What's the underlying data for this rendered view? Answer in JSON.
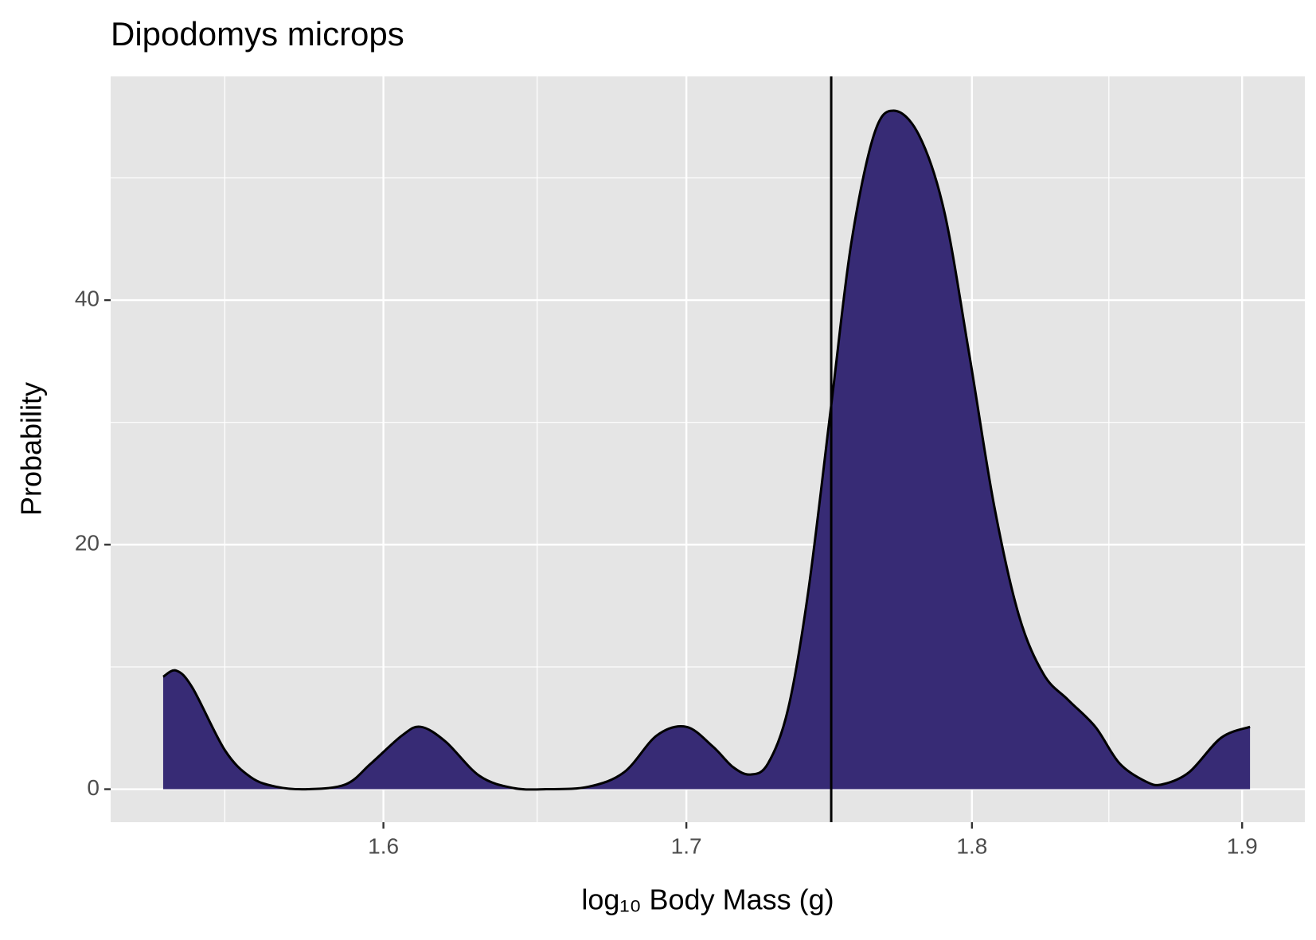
{
  "chart_data": {
    "type": "area",
    "title": "Dipodomys microps",
    "x_label": "log₁₀ Body Mass (g)",
    "y_label": "Probability",
    "x": [
      1.531,
      1.535,
      1.54,
      1.55,
      1.558,
      1.566,
      1.576,
      1.588,
      1.596,
      1.606,
      1.612,
      1.62,
      1.631,
      1.642,
      1.653,
      1.667,
      1.679,
      1.69,
      1.7,
      1.709,
      1.716,
      1.722,
      1.728,
      1.735,
      1.742,
      1.75,
      1.757,
      1.765,
      1.772,
      1.781,
      1.79,
      1.799,
      1.808,
      1.817,
      1.826,
      1.835,
      1.845,
      1.854,
      1.864,
      1.87,
      1.88,
      1.892,
      1.903
    ],
    "values": [
      9.2,
      9.7,
      8.3,
      3.2,
      1.0,
      0.2,
      0,
      0.4,
      2.1,
      4.4,
      5.1,
      3.9,
      1.1,
      0.1,
      0,
      0.2,
      1.4,
      4.4,
      5.1,
      3.5,
      1.8,
      1.2,
      2.1,
      6.6,
      16.2,
      31.4,
      44.6,
      53.5,
      55.5,
      53.5,
      47.3,
      35.6,
      23.2,
      14.2,
      9.4,
      7.3,
      5.1,
      2.1,
      0.6,
      0.4,
      1.4,
      4.2,
      5.1
    ],
    "color": "#372b75",
    "line_color": "#000000",
    "vline": 1.75,
    "x_log": true,
    "xlim": [
      1.515,
      1.924
    ],
    "xticks": [
      1.6,
      1.7,
      1.8,
      1.9
    ],
    "x_minor_ticks": [
      1.55,
      1.65,
      1.75,
      1.85
    ],
    "ylim": [
      -2.7,
      58.3
    ],
    "yticks": [
      0,
      20,
      40
    ],
    "y_minor_ticks": [
      10,
      30,
      50
    ],
    "grid": true,
    "panel_color": "#e5e5e5"
  }
}
